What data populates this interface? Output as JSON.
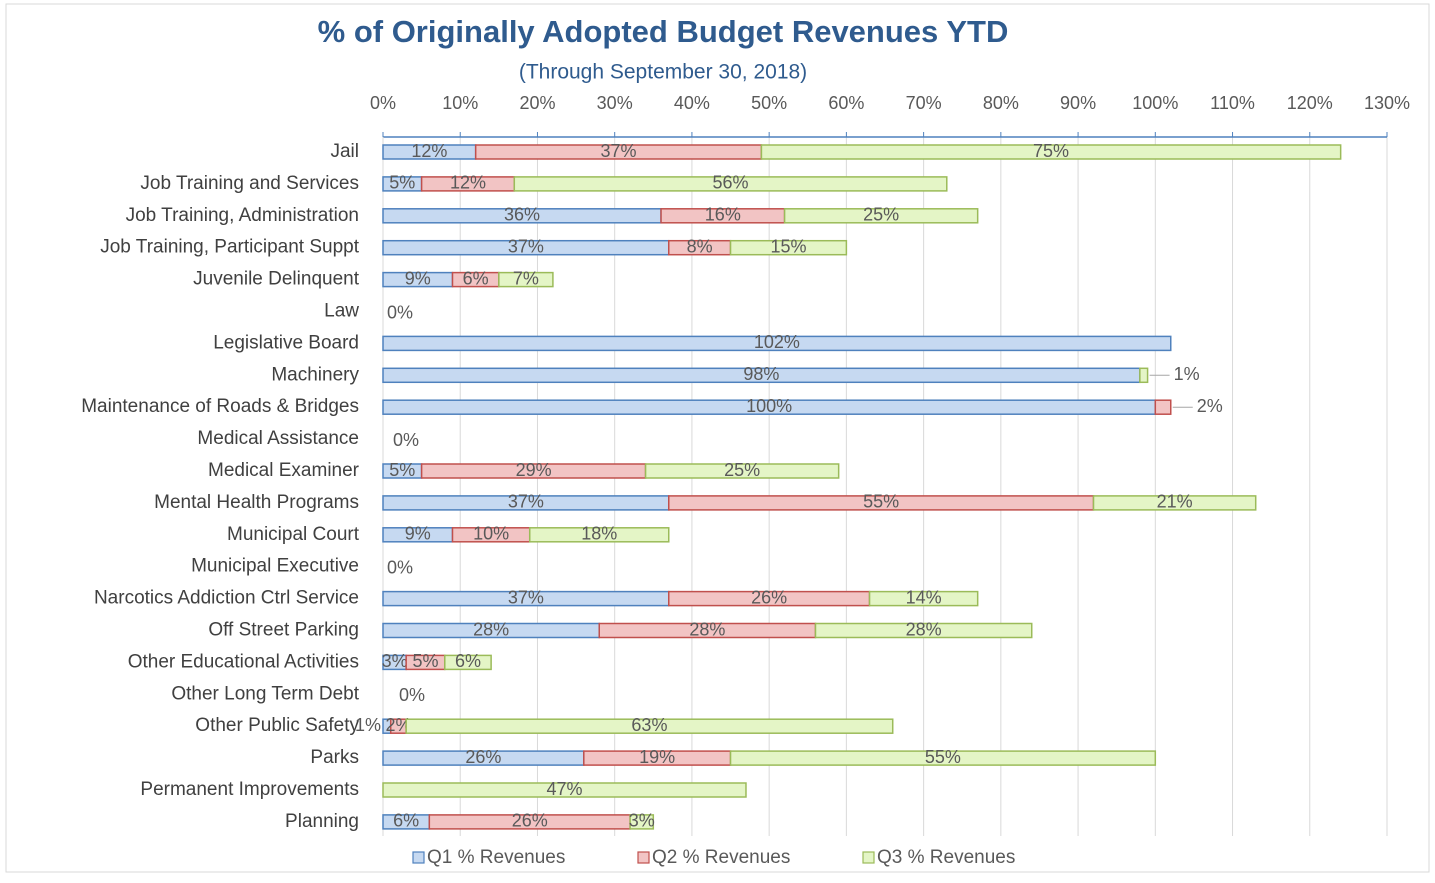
{
  "chart_data": {
    "type": "stacked_barh",
    "title": "% of Originally Adopted Budget Revenues YTD",
    "subtitle": "(Through September 30, 2018)",
    "categories": [
      "Jail",
      "Job Training and Services",
      "Job Training, Administration",
      "Job Training, Participant Suppt",
      "Juvenile Delinquent",
      "Law",
      "Legislative Board",
      "Machinery",
      "Maintenance of Roads & Bridges",
      "Medical Assistance",
      "Medical Examiner",
      "Mental Health Programs",
      "Municipal Court",
      "Municipal Executive",
      "Narcotics Addiction Ctrl Service",
      "Off Street Parking",
      "Other Educational Activities",
      "Other Long Term Debt",
      "Other Public Safety",
      "Parks",
      "Permanent Improvements",
      "Planning"
    ],
    "series": [
      {
        "name": "Q1 % Revenues",
        "color": "#c6d9f1",
        "edge_color": "#4f81bd",
        "values": [
          12,
          5,
          36,
          37,
          9,
          0,
          102,
          98,
          100,
          null,
          5,
          37,
          9,
          0,
          37,
          28,
          3,
          null,
          1,
          26,
          null,
          6
        ],
        "value_labels": [
          "12%",
          "5%",
          "36%",
          "37%",
          "9%",
          "0%",
          "102%",
          "98%",
          "100%",
          null,
          "5%",
          "37%",
          "9%",
          "0%",
          "37%",
          "28%",
          "3%",
          null,
          "1%",
          "26%",
          null,
          "6%"
        ]
      },
      {
        "name": "Q2 % Revenues",
        "color": "#f2c4c4",
        "edge_color": "#c0504d",
        "values": [
          37,
          12,
          16,
          8,
          6,
          null,
          null,
          null,
          2,
          0,
          29,
          55,
          10,
          null,
          26,
          28,
          5,
          null,
          2,
          19,
          null,
          26
        ],
        "value_labels": [
          "37%",
          "12%",
          "16%",
          "8%",
          "6%",
          null,
          null,
          null,
          "2%",
          "0%",
          "29%",
          "55%",
          "10%",
          null,
          "26%",
          "28%",
          "5%",
          null,
          "2%",
          "19%",
          null,
          "26%"
        ]
      },
      {
        "name": "Q3 % Revenues",
        "color": "#e4f5c6",
        "edge_color": "#9bbb59",
        "values": [
          75,
          56,
          25,
          15,
          7,
          null,
          null,
          1,
          null,
          null,
          25,
          21,
          18,
          null,
          14,
          28,
          6,
          0,
          63,
          55,
          47,
          3
        ],
        "value_labels": [
          "75%",
          "56%",
          "25%",
          "15%",
          "7%",
          null,
          null,
          "1%",
          null,
          null,
          "25%",
          "21%",
          "18%",
          null,
          "14%",
          "28%",
          "6%",
          "0%",
          "63%",
          "55%",
          "47%",
          "3%"
        ]
      }
    ],
    "xlim": [
      0,
      130
    ],
    "xticks": [
      {
        "value": 0,
        "label": "0%"
      },
      {
        "value": 10,
        "label": "10%"
      },
      {
        "value": 20,
        "label": "20%"
      },
      {
        "value": 30,
        "label": "30%"
      },
      {
        "value": 40,
        "label": "40%"
      },
      {
        "value": 50,
        "label": "50%"
      },
      {
        "value": 60,
        "label": "60%"
      },
      {
        "value": 70,
        "label": "70%"
      },
      {
        "value": 80,
        "label": "80%"
      },
      {
        "value": 90,
        "label": "90%"
      },
      {
        "value": 100,
        "label": "100%"
      },
      {
        "value": 110,
        "label": "110%"
      },
      {
        "value": 120,
        "label": "120%"
      },
      {
        "value": 130,
        "label": "130%"
      }
    ],
    "grid": true,
    "legend": "bottom"
  }
}
